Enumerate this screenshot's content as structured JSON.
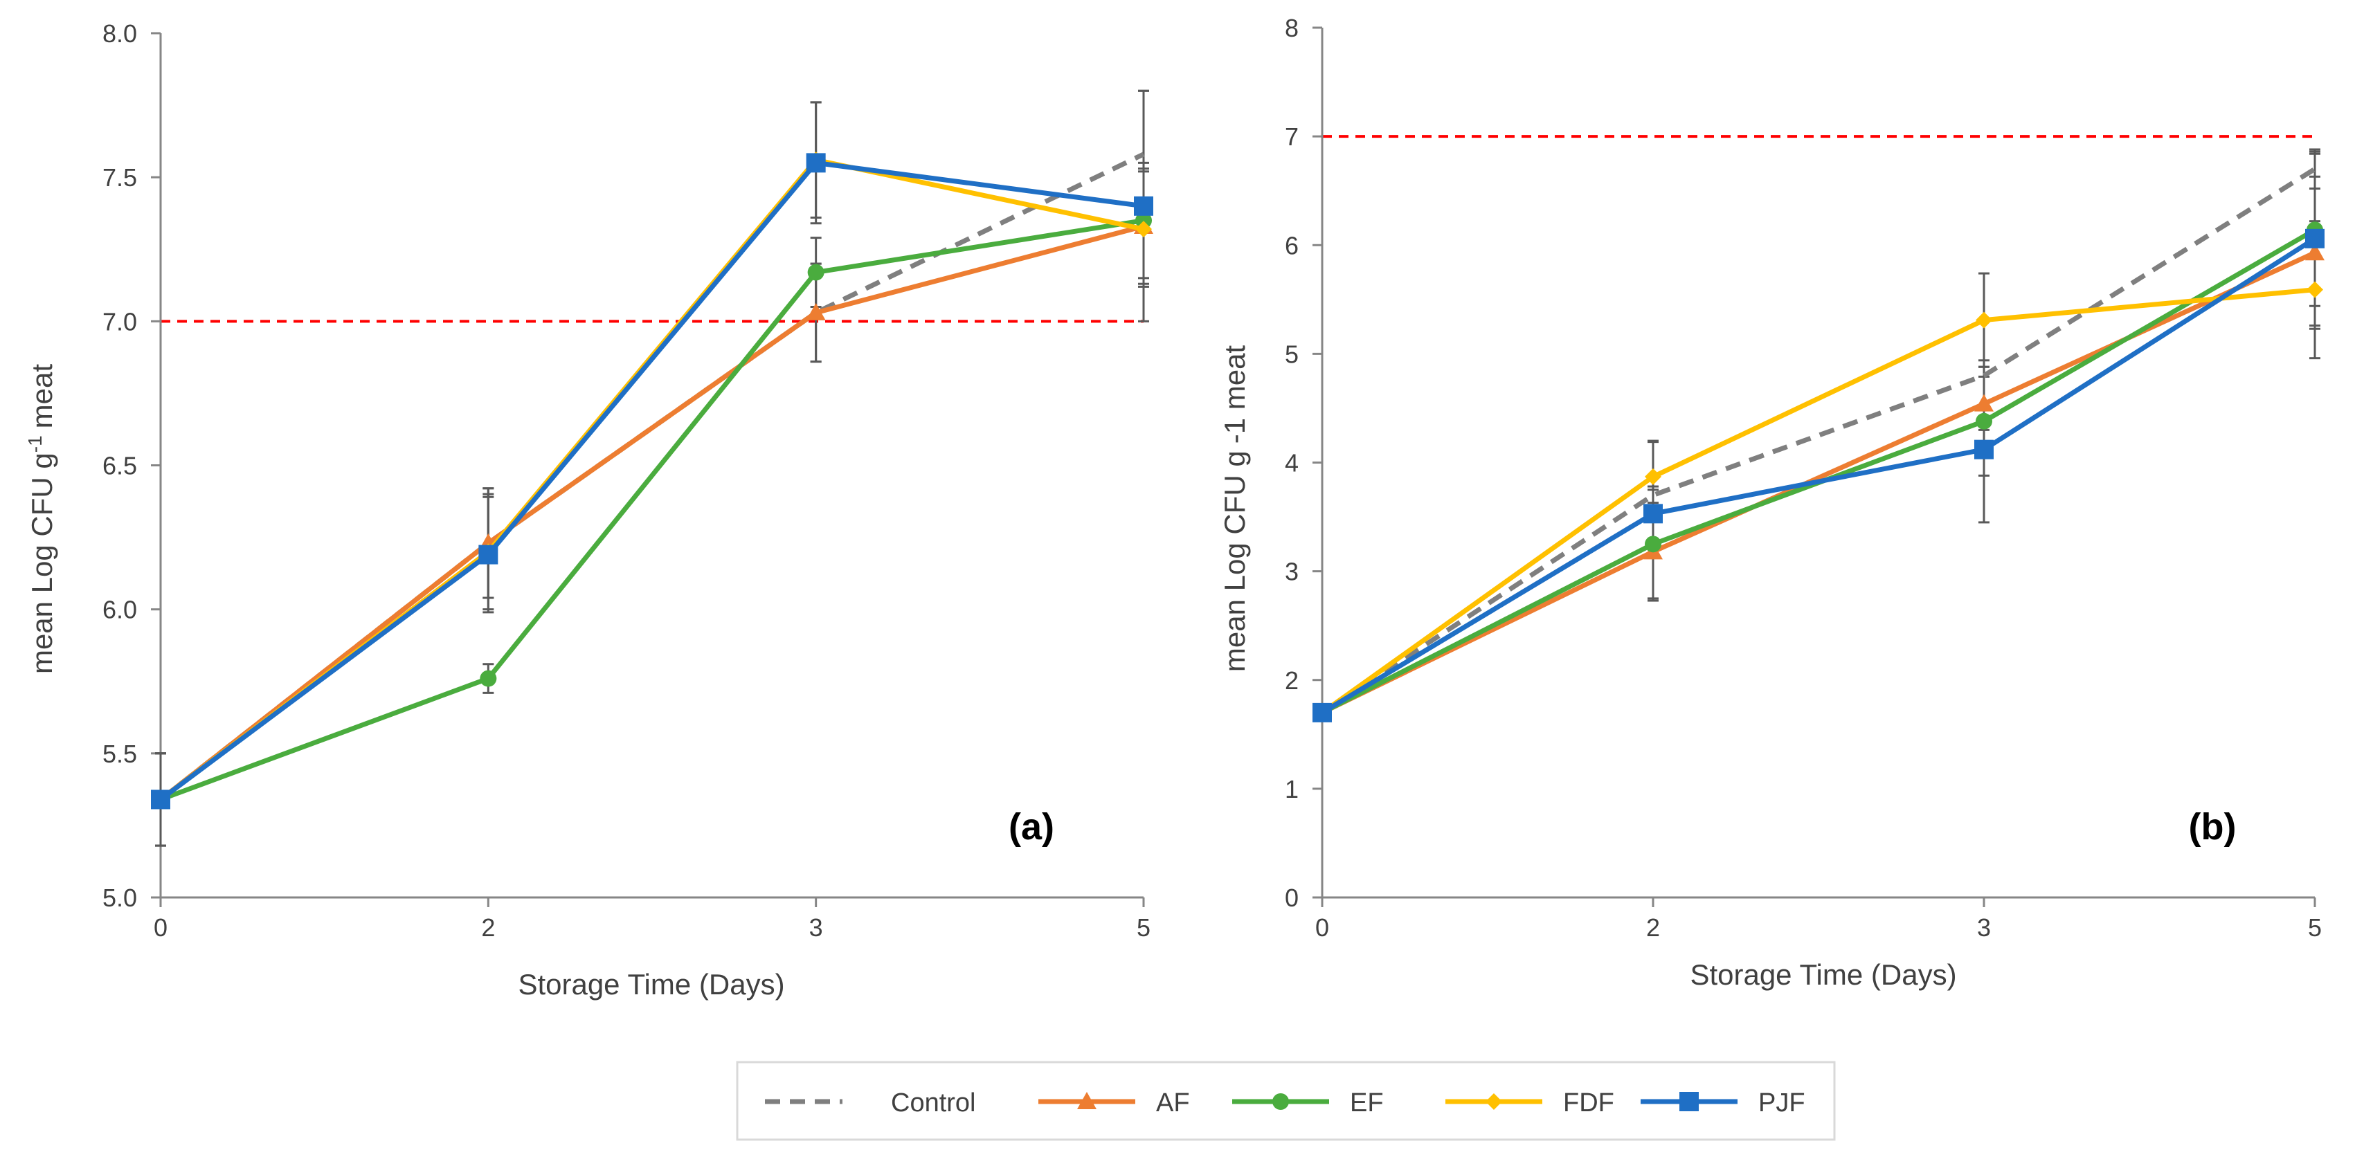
{
  "chart_data": [
    {
      "panel_label": "(a)",
      "type": "line",
      "xlabel": "Storage Time (Days)",
      "ylabel_main": "mean Log CFU g",
      "ylabel_sup": "-1",
      "ylabel_tail": "meat",
      "categories": [
        "0",
        "2",
        "3",
        "5"
      ],
      "ylim": [
        5.0,
        8.0
      ],
      "yticks": [
        5.0,
        5.5,
        6.0,
        6.5,
        7.0,
        7.5,
        8.0
      ],
      "ytick_labels": [
        "5.0",
        "5.5",
        "6.0",
        "6.5",
        "7.0",
        "7.5",
        "8.0"
      ],
      "reference_line": 7.0,
      "series": [
        {
          "name": "Control",
          "values": [
            5.34,
            6.23,
            7.03,
            7.58
          ],
          "err": [
            0.16,
            0.19,
            0.17,
            0.22
          ]
        },
        {
          "name": "AF",
          "values": [
            5.34,
            6.23,
            7.03,
            7.33
          ],
          "err": [
            0.16,
            0.19,
            0.17,
            0.2
          ]
        },
        {
          "name": "EF",
          "values": [
            5.34,
            5.76,
            7.17,
            7.35
          ],
          "err": [
            0.16,
            0.05,
            0.12,
            0.2
          ]
        },
        {
          "name": "FDF",
          "values": [
            5.34,
            6.2,
            7.56,
            7.32
          ],
          "err": [
            0.16,
            0.2,
            0.2,
            0.2
          ]
        },
        {
          "name": "PJF",
          "values": [
            5.34,
            6.19,
            7.55,
            7.4
          ],
          "err": [
            0.16,
            0.2,
            0.21,
            0.4
          ]
        }
      ]
    },
    {
      "panel_label": "(b)",
      "type": "line",
      "xlabel": "Storage Time (Days)",
      "ylabel_main": "mean Log CFU g",
      "ylabel_sup": "",
      "ylabel_tail": "-1 meat",
      "categories": [
        "0",
        "2",
        "3",
        "5"
      ],
      "ylim": [
        0,
        8
      ],
      "yticks": [
        0,
        1,
        2,
        3,
        4,
        5,
        6,
        7,
        8
      ],
      "ytick_labels": [
        "0",
        "1",
        "2",
        "3",
        "4",
        "5",
        "6",
        "7",
        "8"
      ],
      "reference_line": 7,
      "series": [
        {
          "name": "Control",
          "values": [
            1.7,
            3.7,
            4.8,
            6.7
          ],
          "err": [
            0.05,
            0.5,
            0.5,
            0.18
          ]
        },
        {
          "name": "AF",
          "values": [
            1.7,
            3.18,
            4.54,
            5.93
          ],
          "err": [
            0.05,
            0.45,
            0.4,
            0.7
          ]
        },
        {
          "name": "EF",
          "values": [
            1.7,
            3.25,
            4.38,
            6.14
          ],
          "err": [
            0.05,
            0.5,
            0.5,
            0.7
          ]
        },
        {
          "name": "FDF",
          "values": [
            1.7,
            3.87,
            5.31,
            5.59
          ],
          "err": [
            0.05,
            0.32,
            0.43,
            0.63
          ]
        },
        {
          "name": "PJF",
          "values": [
            1.7,
            3.53,
            4.12,
            6.06
          ],
          "err": [
            0.05,
            0.25,
            0.67,
            0.8
          ]
        }
      ]
    }
  ],
  "legend": {
    "placement": "bottom-center",
    "items": [
      {
        "name": "Control",
        "color": "#7f7f7f",
        "marker": "none",
        "dash": true
      },
      {
        "name": "AF",
        "color": "#ed7d31",
        "marker": "triangle",
        "dash": false
      },
      {
        "name": "EF",
        "color": "#4aac3e",
        "marker": "circle",
        "dash": false
      },
      {
        "name": "FDF",
        "color": "#ffc000",
        "marker": "diamond",
        "dash": false
      },
      {
        "name": "PJF",
        "color": "#1f6fc5",
        "marker": "square",
        "dash": false
      }
    ]
  },
  "colors": {
    "Control": "#7f7f7f",
    "AF": "#ed7d31",
    "EF": "#4aac3e",
    "FDF": "#ffc000",
    "PJF": "#1f6fc5",
    "reference": "#ff0000",
    "axis": "#868686",
    "errorbar": "#595959"
  }
}
